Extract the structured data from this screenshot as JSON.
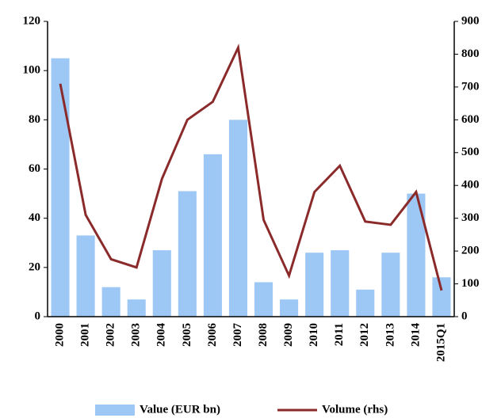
{
  "chart_data": {
    "type": "bar_line",
    "categories": [
      "2000",
      "2001",
      "2002",
      "2003",
      "2004",
      "2005",
      "2006",
      "2007",
      "2008",
      "2009",
      "2010",
      "2011",
      "2012",
      "2013",
      "2014",
      "2015Q1"
    ],
    "series": [
      {
        "name": "Value (EUR bn)",
        "type": "bar",
        "color": "#9dc8f5",
        "values": [
          105,
          33,
          12,
          7,
          27,
          51,
          66,
          80,
          14,
          7,
          26,
          27,
          11,
          26,
          50,
          16
        ]
      },
      {
        "name": "Volume (rhs)",
        "type": "line",
        "axis": "y2",
        "color": "#8b2a2a",
        "values": [
          710,
          310,
          175,
          150,
          420,
          600,
          655,
          820,
          295,
          125,
          380,
          460,
          290,
          280,
          380,
          80
        ]
      }
    ],
    "ylim": [
      0,
      120
    ],
    "yticks": [
      0,
      20,
      40,
      60,
      80,
      100,
      120
    ],
    "y2lim": [
      0,
      900
    ],
    "y2ticks": [
      0,
      100,
      200,
      300,
      400,
      500,
      600,
      700,
      800,
      900
    ],
    "grid": false,
    "legend": "bottom"
  }
}
